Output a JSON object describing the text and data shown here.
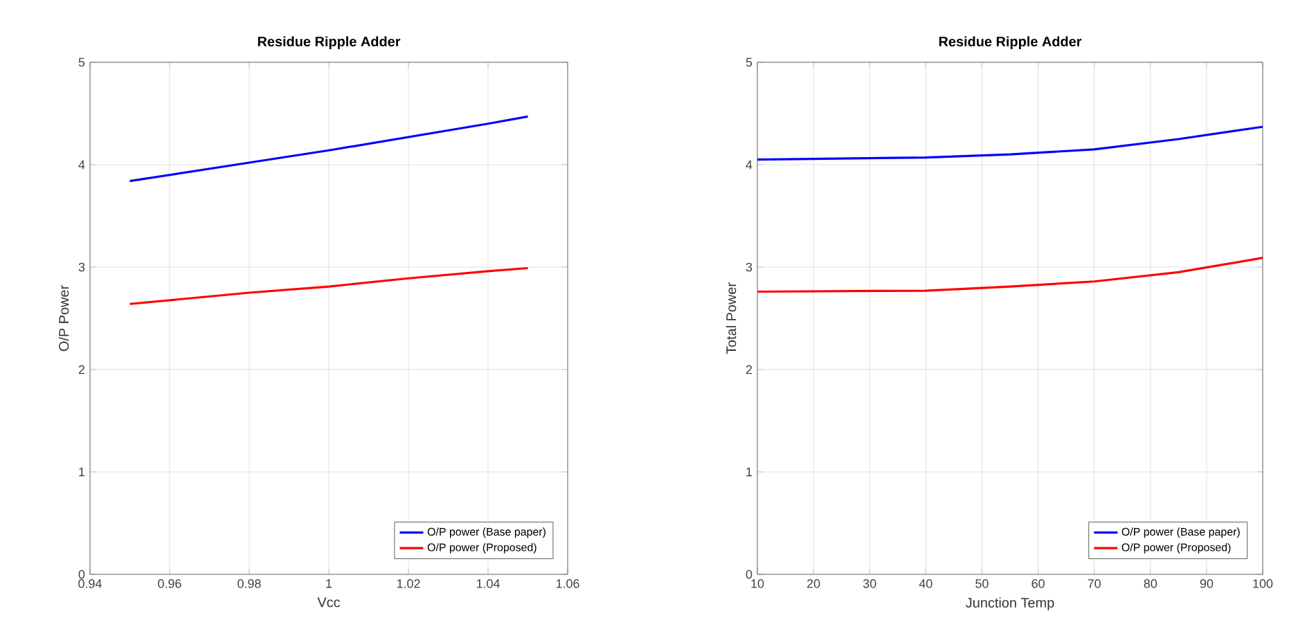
{
  "chart_data": [
    {
      "type": "line",
      "title": "Residue Ripple Adder",
      "xlabel": "Vcc",
      "ylabel": "O/P Power",
      "xlim": [
        0.94,
        1.06
      ],
      "xticks": [
        0.94,
        0.96,
        0.98,
        1,
        1.02,
        1.04,
        1.06
      ],
      "ylim": [
        0,
        5
      ],
      "yticks": [
        0,
        1,
        2,
        3,
        4,
        5
      ],
      "grid": true,
      "legend": "bottom right",
      "line_style": "solid",
      "x": [
        0.95,
        0.98,
        1.0,
        1.02,
        1.04,
        1.05
      ],
      "series": [
        {
          "name": "O/P power (Base paper)",
          "color": "#0000ff",
          "values": [
            3.84,
            4.02,
            4.14,
            4.27,
            4.4,
            4.47
          ]
        },
        {
          "name": "O/P power (Proposed)",
          "color": "#ff0000",
          "values": [
            2.64,
            2.75,
            2.81,
            2.89,
            2.96,
            2.99
          ]
        }
      ]
    },
    {
      "type": "line",
      "title": "Residue Ripple Adder",
      "xlabel": "Junction Temp",
      "ylabel": "Total Power",
      "xlim": [
        10,
        100
      ],
      "xticks": [
        10,
        20,
        30,
        40,
        50,
        60,
        70,
        80,
        90,
        100
      ],
      "ylim": [
        0,
        5
      ],
      "yticks": [
        0,
        1,
        2,
        3,
        4,
        5
      ],
      "grid": true,
      "legend": "bottom right",
      "line_style": "solid",
      "x": [
        10,
        40,
        55,
        70,
        85,
        100
      ],
      "series": [
        {
          "name": "O/P power (Base paper)",
          "color": "#0000ff",
          "values": [
            4.05,
            4.07,
            4.1,
            4.15,
            4.25,
            4.37
          ]
        },
        {
          "name": "O/P power (Proposed)",
          "color": "#ff0000",
          "values": [
            2.76,
            2.77,
            2.81,
            2.86,
            2.95,
            3.09
          ]
        }
      ]
    }
  ]
}
